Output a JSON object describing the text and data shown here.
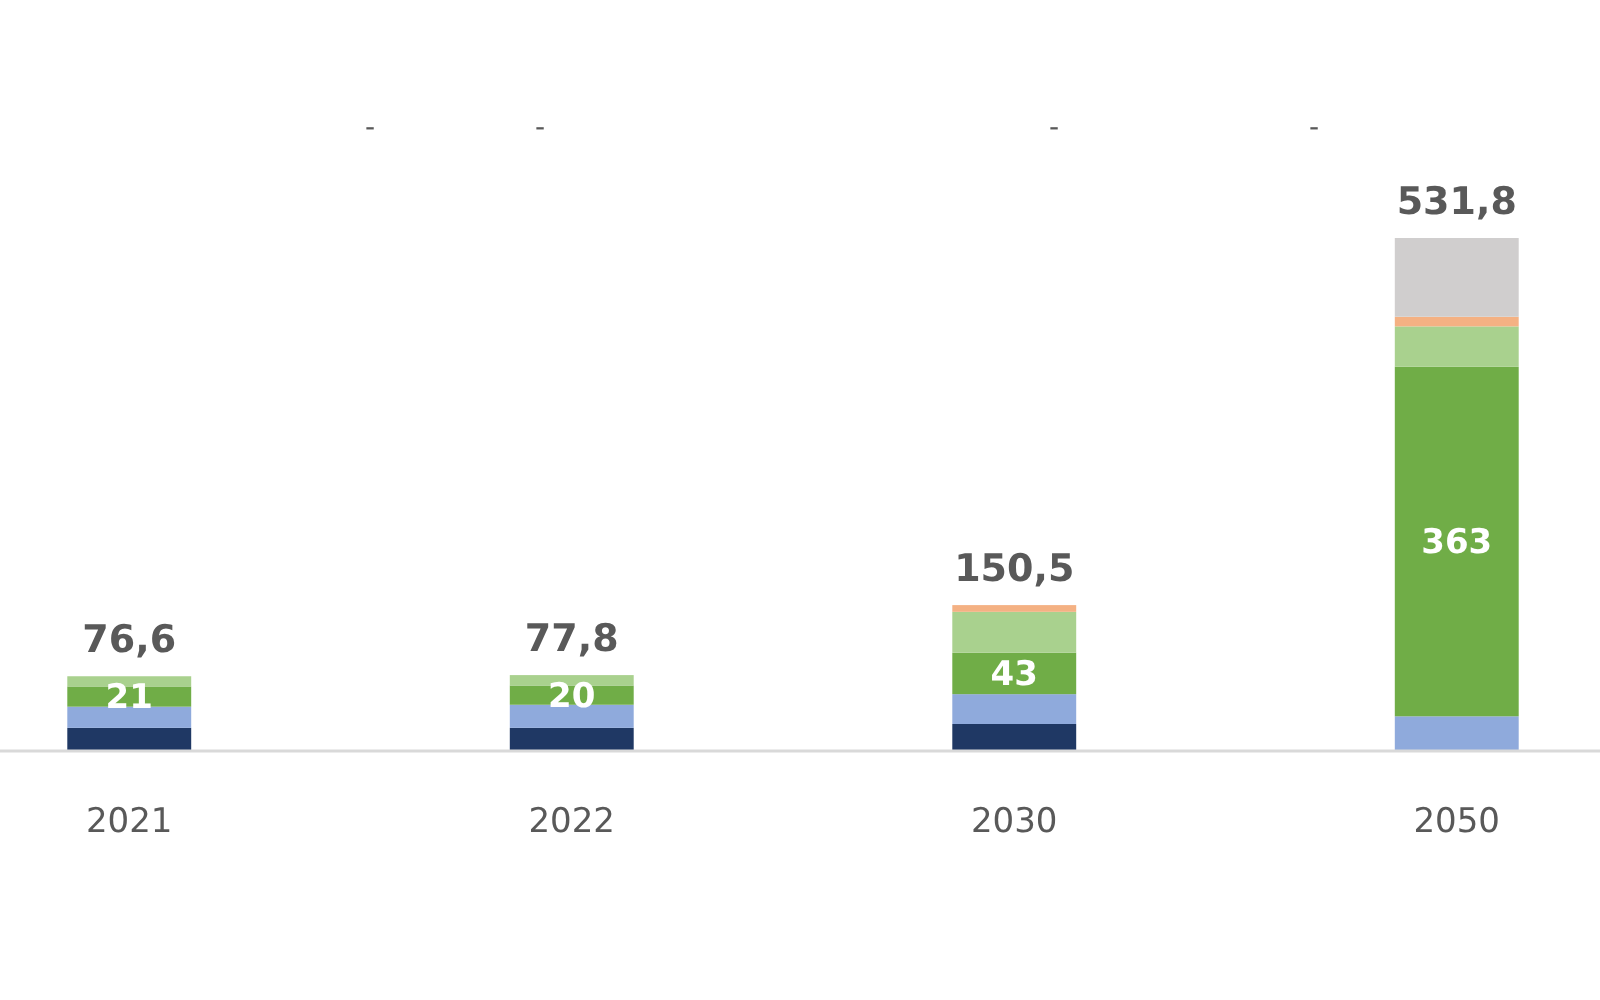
{
  "chart_data": {
    "type": "bar",
    "stacked": true,
    "categories": [
      "2021",
      "2022",
      "2030",
      "2050"
    ],
    "series": [
      {
        "color": "#1f3864",
        "values": [
          23,
          23,
          27,
          null
        ]
      },
      {
        "color": "#8faadc",
        "values": [
          22,
          24,
          31,
          35
        ]
      },
      {
        "color": "#70ad47",
        "values": [
          21,
          20,
          43,
          363
        ],
        "value_labels": [
          "21",
          "20",
          "43",
          "363"
        ]
      },
      {
        "color": "#a9d18e",
        "values": [
          10.6,
          10.8,
          42.5,
          42
        ]
      },
      {
        "color": "#f4b183",
        "values": [
          null,
          null,
          7,
          10
        ]
      },
      {
        "color": "#d0cece",
        "values": [
          null,
          null,
          null,
          81.8
        ]
      }
    ],
    "totals": [
      "76,6",
      "77,8",
      "150,5",
      "531,8"
    ],
    "annotations": [
      "-",
      "-",
      "-",
      "-"
    ]
  }
}
